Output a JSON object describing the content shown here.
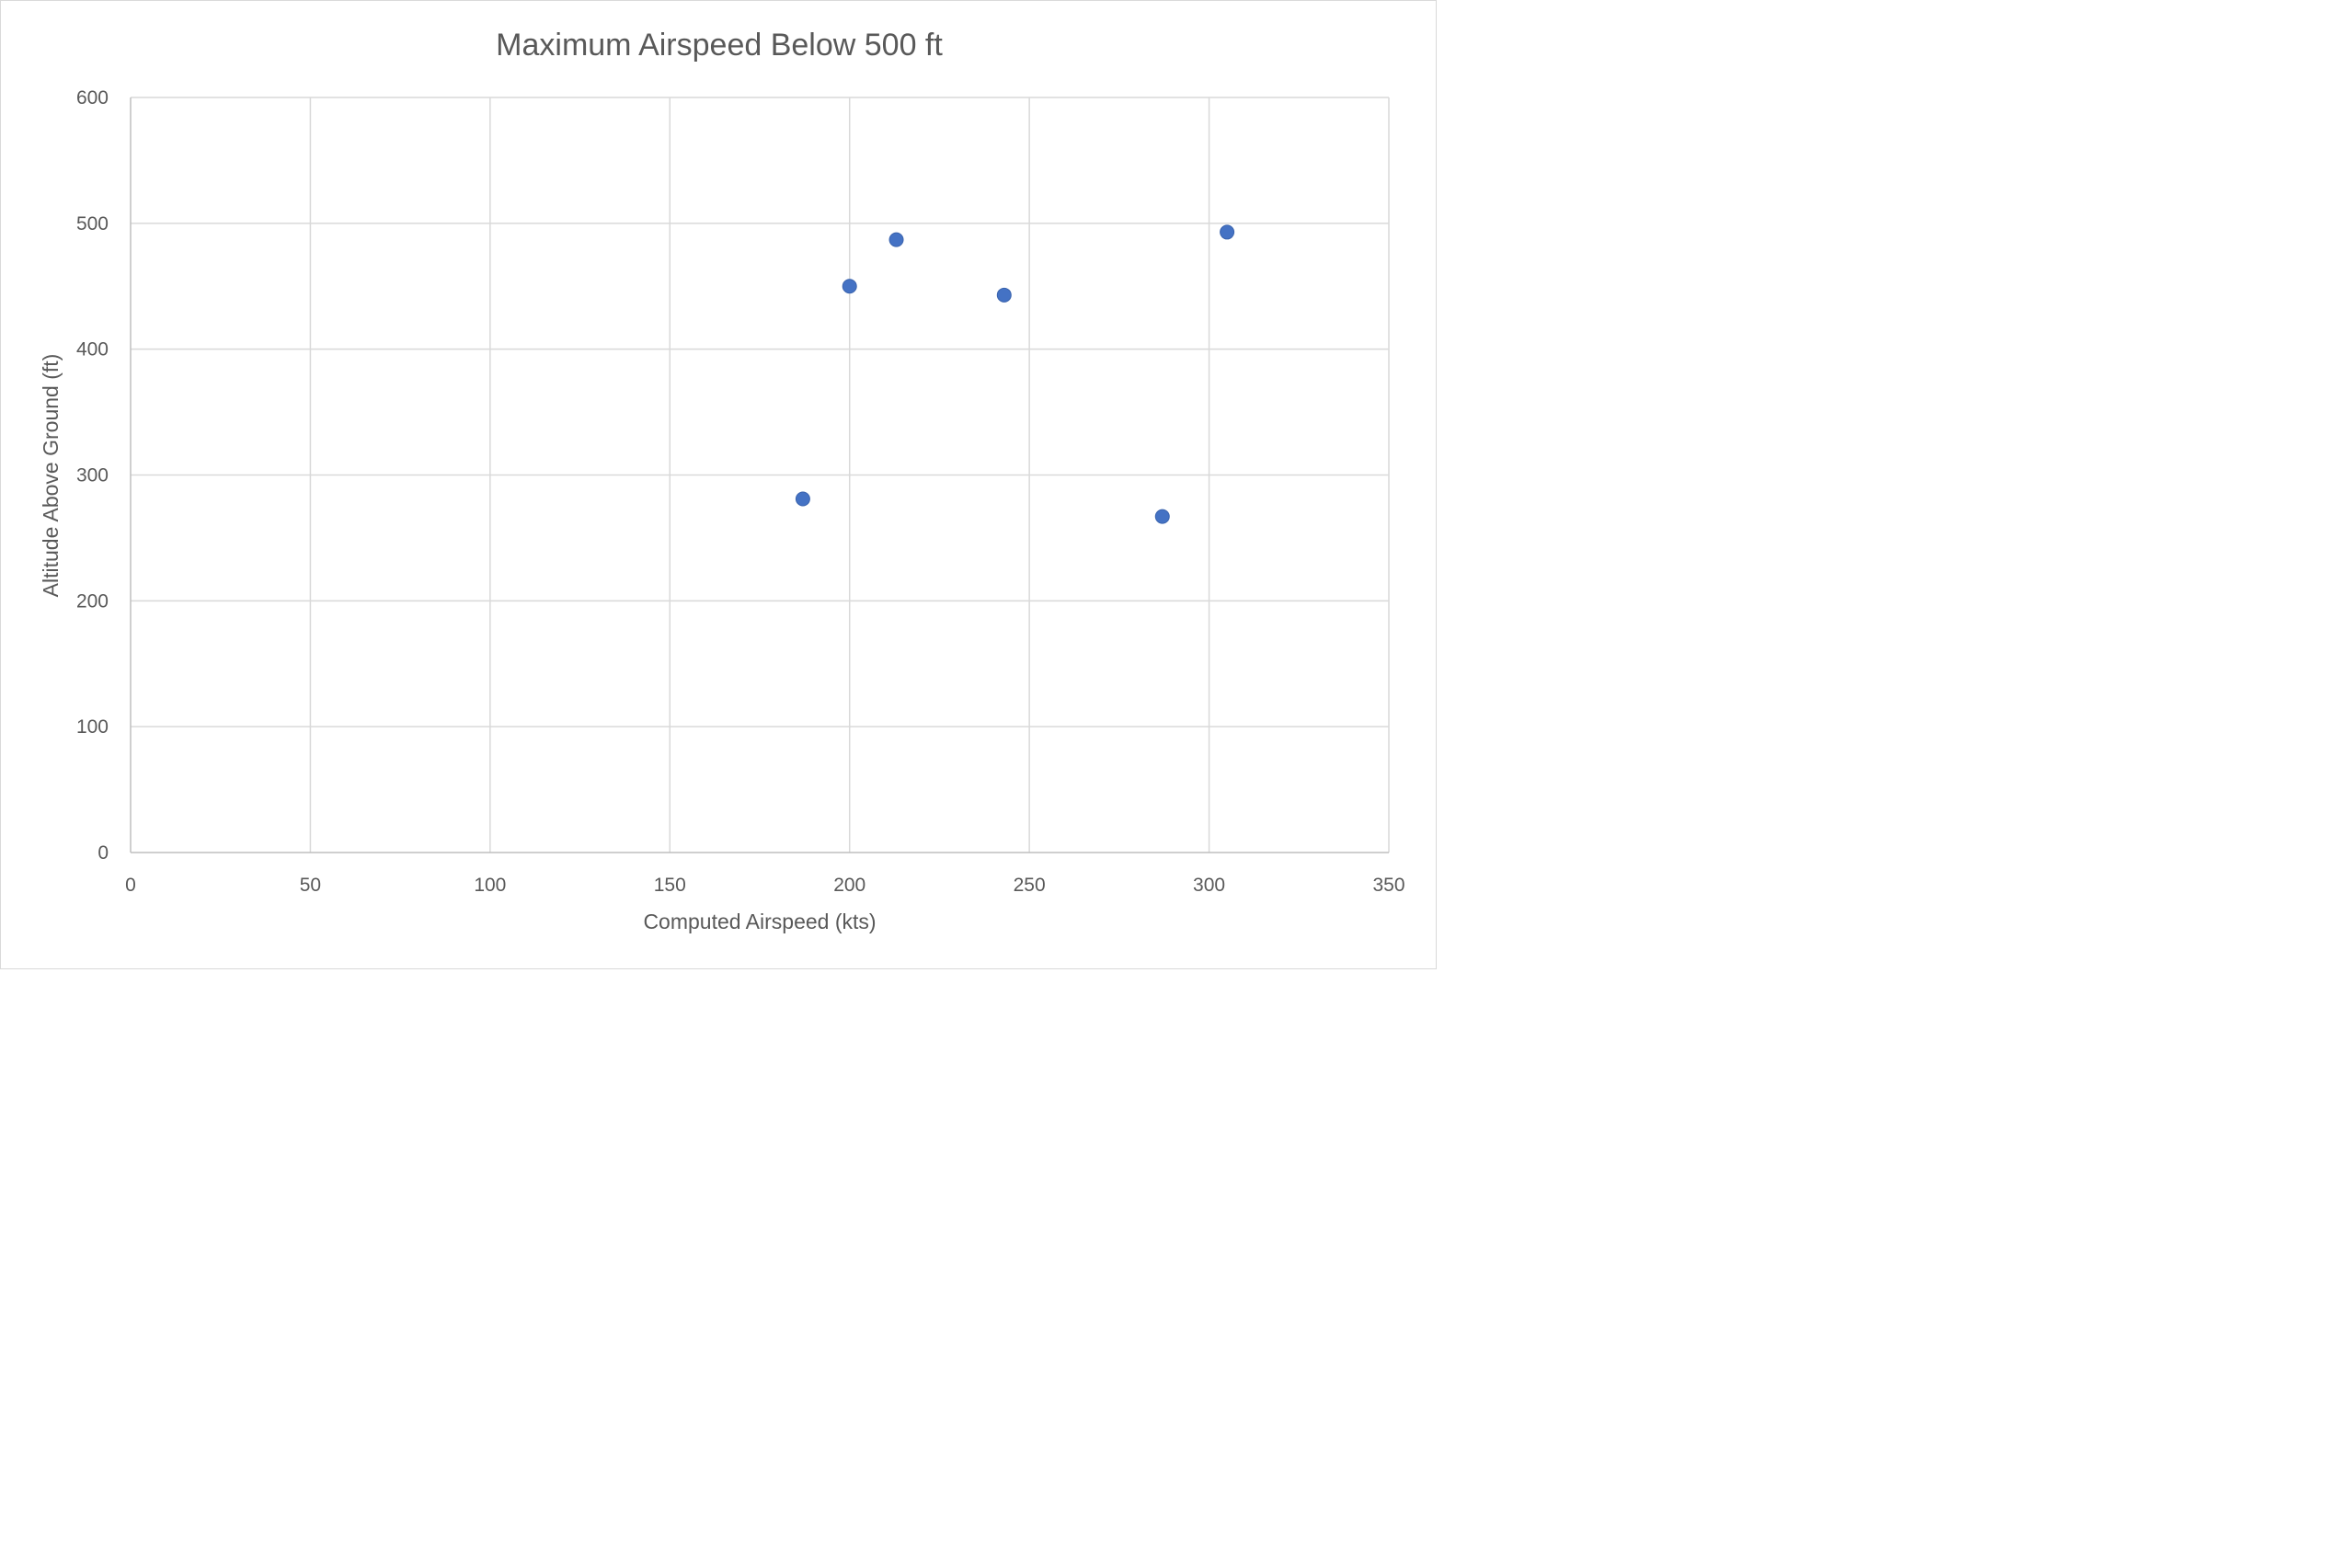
{
  "chart_data": {
    "type": "scatter",
    "title": "Maximum Airspeed Below 500 ft",
    "xlabel": "Computed Airspeed (kts)",
    "ylabel": "Altitude Above Ground (ft)",
    "xlim": [
      0,
      350
    ],
    "ylim": [
      0,
      600
    ],
    "x_ticks": [
      0,
      50,
      100,
      150,
      200,
      250,
      300,
      350
    ],
    "y_ticks": [
      0,
      100,
      200,
      300,
      400,
      500,
      600
    ],
    "grid": true,
    "legend": "none",
    "marker_color": "#4472c4",
    "series": [
      {
        "points": [
          {
            "x": 187,
            "y": 281
          },
          {
            "x": 200,
            "y": 450
          },
          {
            "x": 213,
            "y": 487
          },
          {
            "x": 243,
            "y": 443
          },
          {
            "x": 287,
            "y": 267
          },
          {
            "x": 305,
            "y": 493
          }
        ]
      }
    ]
  }
}
